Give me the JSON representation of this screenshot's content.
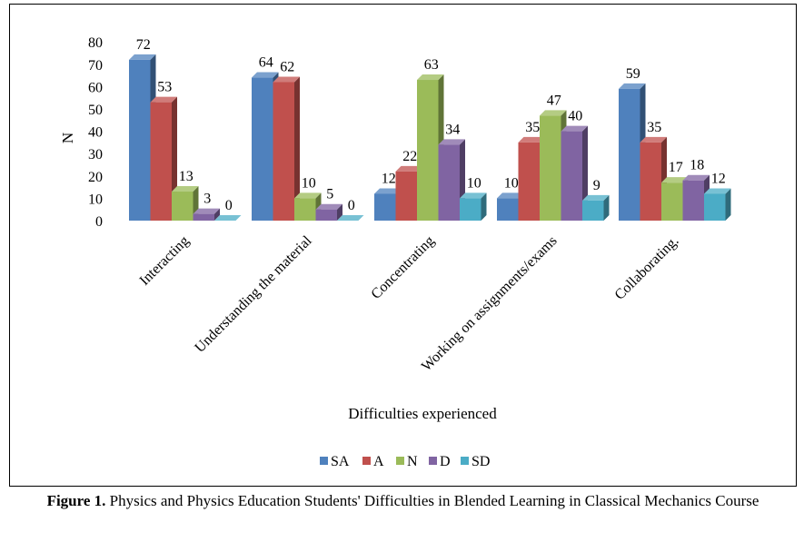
{
  "chart_data": {
    "type": "bar",
    "variant": "3d-clustered",
    "categories": [
      "Interacting",
      "Understanding the material",
      "Concentrating",
      "Working on assignments/exams",
      "Collaborating."
    ],
    "series": [
      {
        "name": "SA",
        "color": "#4F81BD",
        "values": [
          72,
          64,
          12,
          10,
          59
        ]
      },
      {
        "name": "A",
        "color": "#C0504D",
        "values": [
          53,
          62,
          22,
          35,
          35
        ]
      },
      {
        "name": "N",
        "color": "#9BBB59",
        "values": [
          13,
          10,
          63,
          47,
          17
        ]
      },
      {
        "name": "D",
        "color": "#8064A2",
        "values": [
          3,
          5,
          34,
          40,
          18
        ]
      },
      {
        "name": "SD",
        "color": "#4BACC6",
        "values": [
          0,
          0,
          10,
          9,
          12
        ]
      }
    ],
    "ylabel": "N",
    "xlabel": "Difficulties experienced",
    "yticks": [
      0,
      10,
      20,
      30,
      40,
      50,
      60,
      70,
      80
    ],
    "ylim": [
      0,
      80
    ],
    "grid": false,
    "legend": "bottom"
  },
  "caption": {
    "label": "Figure 1.",
    "text": " Physics and Physics Education Students' Difficulties in Blended Learning in Classical Mechanics Course"
  }
}
